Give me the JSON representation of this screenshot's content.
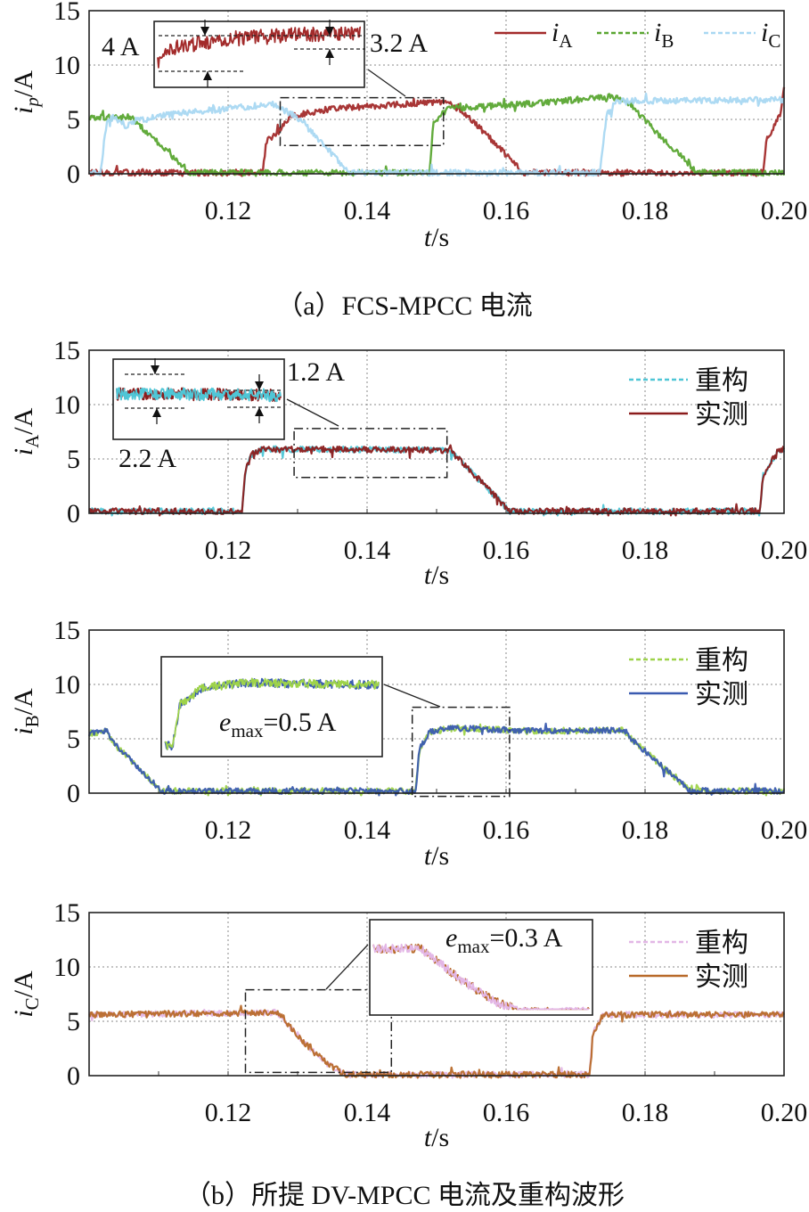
{
  "captions": {
    "a": "（a）FCS-MPCC 电流",
    "b": "（b）所提 DV-MPCC 电流及重构波形"
  },
  "colors": {
    "iA": "#a32b2b",
    "iB": "#5aa631",
    "iC": "#a9d8f2",
    "reconA": "#4fc6d6",
    "measA": "#8b1c1c",
    "reconB": "#9ed34a",
    "measB": "#3a5bb0",
    "reconC": "#e3b7e6",
    "measC": "#b86a2a"
  },
  "chart_data": [
    {
      "type": "line",
      "ylabel_sym": "i",
      "ylabel_sub": "p",
      "ylabel_unit": "/A",
      "xlabel_sym": "t",
      "xlabel_unit": "/s",
      "xlim": [
        0.1,
        0.2
      ],
      "ylim": [
        0,
        15
      ],
      "xticks": [
        "0.12",
        "0.14",
        "0.16",
        "0.18",
        "0.20"
      ],
      "yticks": [
        "0",
        "5",
        "10",
        "15"
      ],
      "grid": true,
      "legend_position": "top-right",
      "legend_layout": "row",
      "series": [
        {
          "name": "i",
          "sub": "A",
          "color_key": "iA",
          "dash": "solid",
          "points": [
            [
              0.1,
              0.1
            ],
            [
              0.125,
              0.1
            ],
            [
              0.1255,
              3.0
            ],
            [
              0.127,
              3.6
            ],
            [
              0.129,
              5.3
            ],
            [
              0.135,
              6.0
            ],
            [
              0.145,
              6.4
            ],
            [
              0.1515,
              6.6
            ],
            [
              0.155,
              5.0
            ],
            [
              0.1625,
              0.1
            ],
            [
              0.197,
              0.1
            ],
            [
              0.1975,
              3.2
            ],
            [
              0.1995,
              5.5
            ],
            [
              0.2,
              7.8
            ]
          ]
        },
        {
          "name": "i",
          "sub": "B",
          "color_key": "iB",
          "dash": "dashed",
          "points": [
            [
              0.1,
              5.2
            ],
            [
              0.106,
              5.2
            ],
            [
              0.1145,
              0.1
            ],
            [
              0.149,
              0.1
            ],
            [
              0.1495,
              4.5
            ],
            [
              0.1515,
              6.0
            ],
            [
              0.165,
              6.5
            ],
            [
              0.175,
              7.1
            ],
            [
              0.177,
              6.8
            ],
            [
              0.1875,
              0.1
            ],
            [
              0.2,
              0.1
            ]
          ]
        },
        {
          "name": "i",
          "sub": "C",
          "color_key": "iC",
          "dash": "dashed",
          "points": [
            [
              0.1,
              0.1
            ],
            [
              0.1016,
              0.1
            ],
            [
              0.1025,
              4.5
            ],
            [
              0.1035,
              5.3
            ],
            [
              0.1055,
              4.3
            ],
            [
              0.106,
              4.8
            ],
            [
              0.112,
              5.5
            ],
            [
              0.12,
              6.0
            ],
            [
              0.1265,
              6.4
            ],
            [
              0.13,
              5.2
            ],
            [
              0.1375,
              0.1
            ],
            [
              0.1735,
              0.1
            ],
            [
              0.1745,
              5.5
            ],
            [
              0.176,
              6.7
            ],
            [
              0.2,
              6.8
            ]
          ]
        }
      ],
      "inset": {
        "mag_box": {
          "x": [
            0.1275,
            0.151
          ],
          "y": [
            2.6,
            7.0
          ]
        },
        "peak": "4 A",
        "ripple": "3.2 A"
      }
    },
    {
      "type": "line",
      "ylabel_sym": "i",
      "ylabel_sub": "A",
      "ylabel_unit": "/A",
      "xlabel_sym": "t",
      "xlabel_unit": "/s",
      "xlim": [
        0.1,
        0.2
      ],
      "ylim": [
        0,
        15
      ],
      "xticks": [
        "0.12",
        "0.14",
        "0.16",
        "0.18",
        "0.20"
      ],
      "yticks": [
        "0",
        "5",
        "10",
        "15"
      ],
      "grid": true,
      "legend_position": "top-right",
      "legend_layout": "column",
      "series": [
        {
          "name": "重构",
          "color_key": "reconA",
          "dash": "dashed",
          "points": [
            [
              0.1,
              0.2
            ],
            [
              0.122,
              0.2
            ],
            [
              0.1225,
              4.0
            ],
            [
              0.1235,
              5.5
            ],
            [
              0.125,
              5.9
            ],
            [
              0.135,
              5.9
            ],
            [
              0.152,
              5.8
            ],
            [
              0.1535,
              4.8
            ],
            [
              0.1605,
              0.2
            ],
            [
              0.1965,
              0.2
            ],
            [
              0.197,
              3.5
            ],
            [
              0.199,
              5.6
            ],
            [
              0.2,
              5.9
            ]
          ]
        },
        {
          "name": "实测",
          "color_key": "measA",
          "dash": "solid",
          "points": [
            [
              0.1,
              0.2
            ],
            [
              0.122,
              0.2
            ],
            [
              0.1225,
              4.0
            ],
            [
              0.1235,
              5.5
            ],
            [
              0.125,
              5.9
            ],
            [
              0.135,
              5.9
            ],
            [
              0.152,
              5.8
            ],
            [
              0.1535,
              4.8
            ],
            [
              0.1605,
              0.2
            ],
            [
              0.1965,
              0.2
            ],
            [
              0.197,
              3.5
            ],
            [
              0.199,
              5.6
            ],
            [
              0.2,
              5.9
            ]
          ]
        }
      ],
      "inset": {
        "mag_box": {
          "x": [
            0.1295,
            0.1515
          ],
          "y": [
            3.3,
            7.8
          ]
        },
        "ripple_1": "1.2 A",
        "ripple_2": "2.2 A"
      }
    },
    {
      "type": "line",
      "ylabel_sym": "i",
      "ylabel_sub": "B",
      "ylabel_unit": "/A",
      "xlabel_sym": "t",
      "xlabel_unit": "/s",
      "xlim": [
        0.1,
        0.2
      ],
      "ylim": [
        0,
        15
      ],
      "xticks": [
        "0.12",
        "0.14",
        "0.16",
        "0.18",
        "0.20"
      ],
      "yticks": [
        "0",
        "5",
        "10",
        "15"
      ],
      "grid": true,
      "legend_position": "top-right",
      "legend_layout": "column",
      "series": [
        {
          "name": "重构",
          "color_key": "reconB",
          "dash": "dashed",
          "points": [
            [
              0.1,
              5.5
            ],
            [
              0.1025,
              5.7
            ],
            [
              0.1035,
              4.6
            ],
            [
              0.1105,
              0.2
            ],
            [
              0.147,
              0.2
            ],
            [
              0.1475,
              4.0
            ],
            [
              0.149,
              5.6
            ],
            [
              0.152,
              6.0
            ],
            [
              0.165,
              5.7
            ],
            [
              0.177,
              5.8
            ],
            [
              0.178,
              5.0
            ],
            [
              0.1865,
              0.2
            ],
            [
              0.2,
              0.2
            ]
          ]
        },
        {
          "name": "实测",
          "color_key": "measB",
          "dash": "solid",
          "points": [
            [
              0.1,
              5.5
            ],
            [
              0.1025,
              5.7
            ],
            [
              0.1035,
              4.6
            ],
            [
              0.1105,
              0.2
            ],
            [
              0.147,
              0.2
            ],
            [
              0.1475,
              4.0
            ],
            [
              0.149,
              5.6
            ],
            [
              0.152,
              6.0
            ],
            [
              0.165,
              5.7
            ],
            [
              0.177,
              5.8
            ],
            [
              0.178,
              5.0
            ],
            [
              0.1865,
              0.2
            ],
            [
              0.2,
              0.2
            ]
          ]
        }
      ],
      "inset": {
        "mag_box": {
          "x": [
            0.1465,
            0.1605
          ],
          "y": [
            -0.3,
            7.9
          ]
        },
        "error_label": "=0.5 A"
      }
    },
    {
      "type": "line",
      "ylabel_sym": "i",
      "ylabel_sub": "C",
      "ylabel_unit": "/A",
      "xlabel_sym": "t",
      "xlabel_unit": "/s",
      "xlim": [
        0.1,
        0.2
      ],
      "ylim": [
        0,
        15
      ],
      "xticks": [
        "0.12",
        "0.14",
        "0.16",
        "0.18",
        "0.20"
      ],
      "yticks": [
        "0",
        "5",
        "10",
        "15"
      ],
      "grid": true,
      "legend_position": "top-right",
      "legend_layout": "column",
      "series": [
        {
          "name": "重构",
          "color_key": "reconC",
          "dash": "dashed",
          "points": [
            [
              0.1,
              5.6
            ],
            [
              0.127,
              5.8
            ],
            [
              0.128,
              5.2
            ],
            [
              0.131,
              3.0
            ],
            [
              0.1345,
              1.0
            ],
            [
              0.137,
              0.1
            ],
            [
              0.172,
              0.1
            ],
            [
              0.1725,
              4.0
            ],
            [
              0.174,
              5.6
            ],
            [
              0.2,
              5.6
            ]
          ]
        },
        {
          "name": "实测",
          "color_key": "measC",
          "dash": "solid",
          "points": [
            [
              0.1,
              5.6
            ],
            [
              0.127,
              5.8
            ],
            [
              0.128,
              5.2
            ],
            [
              0.131,
              3.0
            ],
            [
              0.1345,
              1.0
            ],
            [
              0.137,
              0.1
            ],
            [
              0.172,
              0.1
            ],
            [
              0.1725,
              4.0
            ],
            [
              0.174,
              5.6
            ],
            [
              0.2,
              5.6
            ]
          ]
        }
      ],
      "inset": {
        "mag_box": {
          "x": [
            0.1225,
            0.1435
          ],
          "y": [
            0.3,
            7.9
          ]
        },
        "error_label": "=0.3 A"
      }
    }
  ]
}
